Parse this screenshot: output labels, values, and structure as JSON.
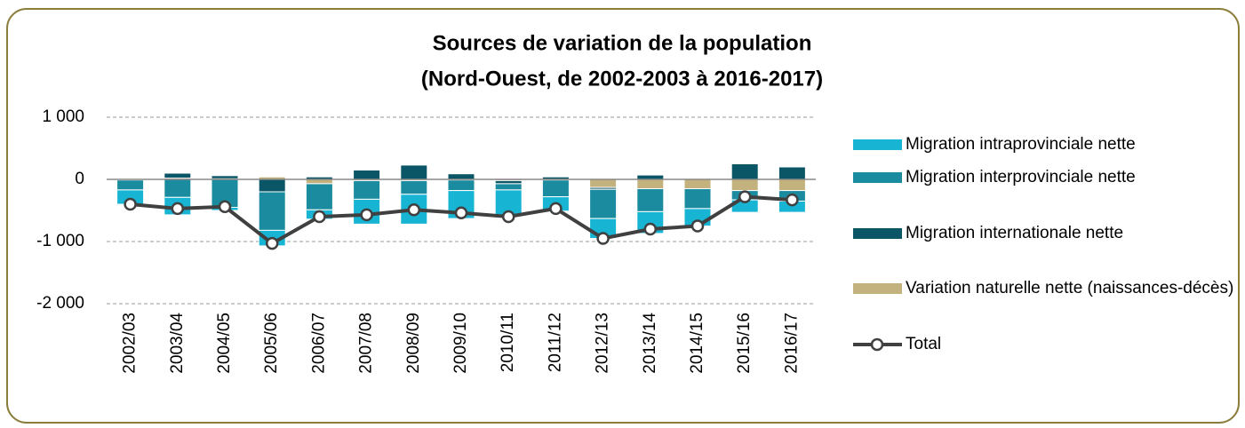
{
  "chart_data": {
    "type": "stacked_bar_line",
    "title": [
      "Sources de variation de la population",
      "(Nord-Ouest, de 2002-2003 à 2016-2017)"
    ],
    "categories": [
      "2002/03",
      "2003/04",
      "2004/05",
      "2005/06",
      "2006/07",
      "2007/08",
      "2008/09",
      "2009/10",
      "2010/11",
      "2011/12",
      "2012/13",
      "2013/14",
      "2014/15",
      "2015/16",
      "2016/17"
    ],
    "series": [
      {
        "name": "Migration intraprovinciale nette",
        "color": "#17b4d3",
        "values": [
          -230,
          -280,
          -50,
          -250,
          -150,
          -400,
          -480,
          -450,
          -430,
          -230,
          -320,
          -350,
          -280,
          -200,
          -180
        ]
      },
      {
        "name": "Migration interprovinciale nette",
        "color": "#1b8b9f",
        "values": [
          -160,
          -290,
          -450,
          -620,
          -420,
          -300,
          -220,
          -170,
          -100,
          -270,
          -470,
          -370,
          -320,
          -150,
          -170
        ]
      },
      {
        "name": "Migration internationale nette",
        "color": "#0b5666",
        "values": [
          -10,
          80,
          50,
          -200,
          40,
          150,
          230,
          90,
          -50,
          40,
          -30,
          70,
          0,
          250,
          200
        ]
      },
      {
        "name": "Variation naturelle nette (naissances-décès)",
        "color": "#c4b27e",
        "values": [
          0,
          20,
          10,
          40,
          -70,
          -20,
          -20,
          -10,
          -20,
          -10,
          -130,
          -150,
          -150,
          -180,
          -180
        ]
      },
      {
        "name": "Total",
        "type": "line",
        "color": "#404040",
        "values": [
          -400,
          -470,
          -440,
          -1030,
          -600,
          -570,
          -490,
          -540,
          -600,
          -470,
          -950,
          -800,
          -750,
          -280,
          -330
        ]
      }
    ],
    "ylim": [
      -2000,
      1000
    ],
    "yticks": [
      {
        "value": 1000,
        "label": "1 000"
      },
      0,
      {
        "value": -1000,
        "label": "-1 000"
      },
      {
        "value": -2000,
        "label": "-2 000"
      }
    ],
    "grid": true,
    "legend": "right"
  }
}
